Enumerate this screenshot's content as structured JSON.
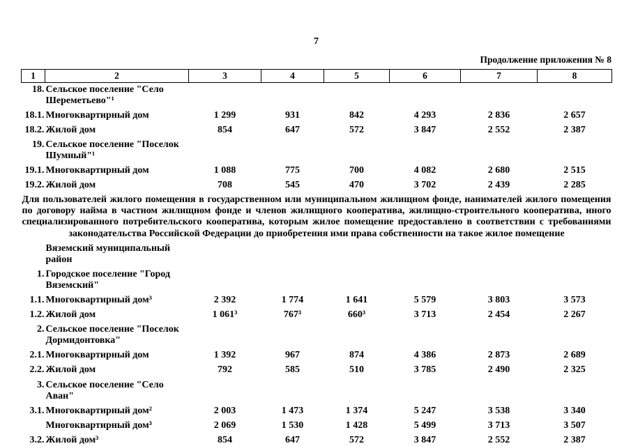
{
  "page": {
    "number": "7",
    "continuation": "Продолжение приложения № 8"
  },
  "table": {
    "header": [
      "1",
      "2",
      "3",
      "4",
      "5",
      "6",
      "7",
      "8"
    ],
    "rows": [
      {
        "type": "group",
        "num": "18.",
        "name": "Сельское поселение \"Село Шереметьево\"¹"
      },
      {
        "type": "data",
        "num": "18.1.",
        "name": "Многоквартирный дом",
        "values": [
          "1 299",
          "931",
          "842",
          "4 293",
          "2 836",
          "2 657"
        ]
      },
      {
        "type": "data",
        "num": "18.2.",
        "name": "Жилой дом",
        "values": [
          "854",
          "647",
          "572",
          "3 847",
          "2 552",
          "2 387"
        ]
      },
      {
        "type": "group",
        "num": "19.",
        "name": "Сельское поселение \"Поселок Шумный\"¹"
      },
      {
        "type": "data",
        "num": "19.1.",
        "name": "Многоквартирный дом",
        "values": [
          "1 088",
          "775",
          "700",
          "4 082",
          "2 680",
          "2 515"
        ]
      },
      {
        "type": "data",
        "num": "19.2.",
        "name": "Жилой дом",
        "values": [
          "708",
          "545",
          "470",
          "3 702",
          "2 439",
          "2 285"
        ]
      },
      {
        "type": "note",
        "text": "Для пользователей жилого помещения в государственном или муниципальном жилищном фонде, нанимателей жилого помещения по договору найма в частном жилищном фонде и членов жилищного кооператива, жилищно-строительного кооператива, иного специализированного потребительского кооператива, которым жилое помещение предоставлено в соответствии с требованиями законодательства Российской Федерации до приобретения ими права собственности на такое жилое помещение"
      },
      {
        "type": "region",
        "num": "",
        "name": "Вяземский муниципальный район"
      },
      {
        "type": "group",
        "num": "1.",
        "name": "Городское поселение \"Город Вяземский\""
      },
      {
        "type": "data",
        "num": "1.1.",
        "name": "Многоквартирный дом³",
        "values": [
          "2 392",
          "1 774",
          "1 641",
          "5 579",
          "3 803",
          "3 573"
        ]
      },
      {
        "type": "data",
        "num": "1.2.",
        "name": "Жилой дом",
        "values": [
          "1 061³",
          "767³",
          "660³",
          "3 713",
          "2 454",
          "2 267"
        ]
      },
      {
        "type": "group",
        "num": "2.",
        "name": "Сельское поселение \"Поселок Дормидонтовка\""
      },
      {
        "type": "data",
        "num": "2.1.",
        "name": "Многоквартирный дом",
        "values": [
          "1 392",
          "967",
          "874",
          "4 386",
          "2 873",
          "2 689"
        ]
      },
      {
        "type": "data",
        "num": "2.2.",
        "name": "Жилой дом",
        "values": [
          "792",
          "585",
          "510",
          "3 785",
          "2 490",
          "2 325"
        ]
      },
      {
        "type": "group",
        "num": "3.",
        "name": "Сельское поселение \"Село Аван\""
      },
      {
        "type": "data",
        "num": "3.1.",
        "name": "Многоквартирный дом²",
        "values": [
          "2 003",
          "1 473",
          "1 374",
          "5 247",
          "3 538",
          "3 340"
        ]
      },
      {
        "type": "data",
        "num": "",
        "name": "Многоквартирный дом³",
        "values": [
          "2 069",
          "1 530",
          "1 428",
          "5 499",
          "3 713",
          "3 507"
        ]
      },
      {
        "type": "data",
        "num": "3.2.",
        "name": "Жилой дом³",
        "values": [
          "854",
          "647",
          "572",
          "3 847",
          "2 552",
          "2 387"
        ]
      }
    ]
  }
}
